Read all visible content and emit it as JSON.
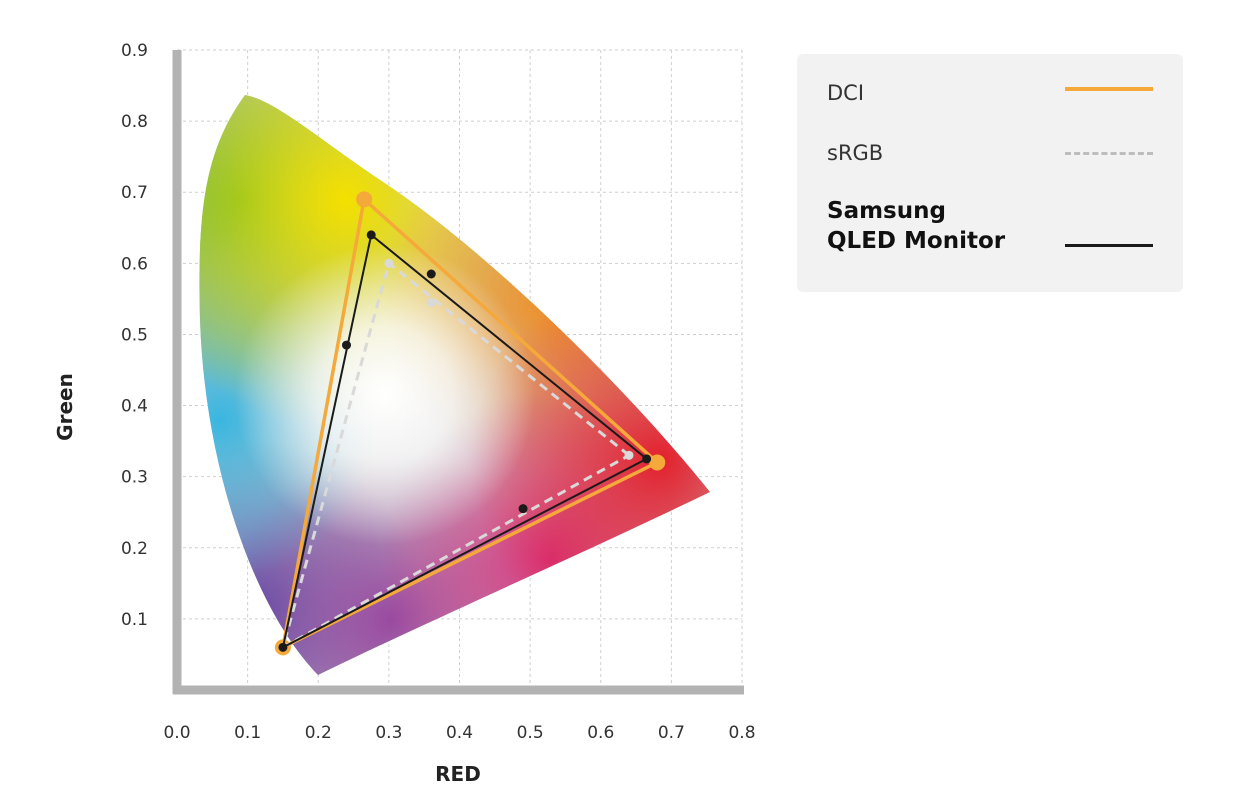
{
  "chart_data": {
    "type": "scatter",
    "title": "",
    "xlabel": "RED",
    "ylabel": "Green",
    "xlim": [
      0.0,
      0.8
    ],
    "ylim": [
      0.0,
      0.9
    ],
    "x_ticks": [
      "0.0",
      "0.1",
      "0.2",
      "0.3",
      "0.4",
      "0.5",
      "0.6",
      "0.7",
      "0.8"
    ],
    "y_ticks": [
      "0.1",
      "0.2",
      "0.3",
      "0.4",
      "0.5",
      "0.6",
      "0.7",
      "0.8",
      "0.9"
    ],
    "grid": true,
    "legend_position": "right",
    "series": [
      {
        "name": "DCI",
        "color": "#f5a93a",
        "style": "solid",
        "points": [
          [
            0.68,
            0.32
          ],
          [
            0.265,
            0.69
          ],
          [
            0.15,
            0.06
          ]
        ]
      },
      {
        "name": "sRGB",
        "color": "#d9d9d9",
        "style": "dashed",
        "points": [
          [
            0.64,
            0.33
          ],
          [
            0.3,
            0.6
          ],
          [
            0.15,
            0.06
          ]
        ],
        "midpoints": [
          [
            0.36,
            0.545
          ]
        ]
      },
      {
        "name": "Samsung QLED Monitor",
        "color": "#1a1a1a",
        "style": "solid",
        "points": [
          [
            0.665,
            0.325
          ],
          [
            0.275,
            0.64
          ],
          [
            0.15,
            0.06
          ]
        ],
        "midpoints": [
          [
            0.36,
            0.585
          ],
          [
            0.49,
            0.255
          ],
          [
            0.24,
            0.485
          ]
        ]
      }
    ]
  },
  "legend": {
    "items": [
      {
        "label": "DCI"
      },
      {
        "label": "sRGB"
      },
      {
        "label_line1": "Samsung",
        "label_line2": "QLED Monitor"
      }
    ]
  }
}
